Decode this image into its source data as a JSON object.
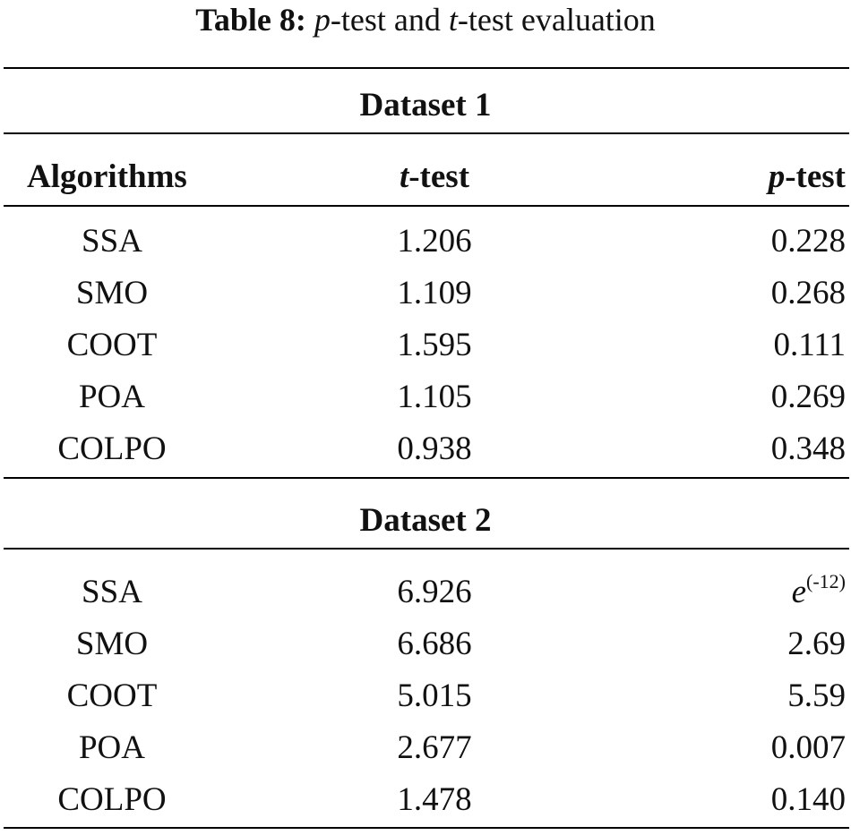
{
  "caption": {
    "label": "Table 8:",
    "p_letter": "p",
    "mid_text": "-test and ",
    "t_letter": "t",
    "end_text": "-test evaluation"
  },
  "header": {
    "algorithms": "Algorithms",
    "t_letter": "t",
    "t_suffix": "-test",
    "p_letter": "p",
    "p_suffix": "-test"
  },
  "dataset1": {
    "title": "Dataset 1",
    "rows": [
      {
        "algorithm": "SSA",
        "t": "1.206",
        "p": "0.228"
      },
      {
        "algorithm": "SMO",
        "t": "1.109",
        "p": "0.268"
      },
      {
        "algorithm": "COOT",
        "t": "1.595",
        "p": "0.111"
      },
      {
        "algorithm": "POA",
        "t": "1.105",
        "p": "0.269"
      },
      {
        "algorithm": "COLPO",
        "t": "0.938",
        "p": "0.348"
      }
    ]
  },
  "dataset2": {
    "title": "Dataset 2",
    "rows": [
      {
        "algorithm": "SSA",
        "t": "6.926",
        "p_base": "e",
        "p_exp": "(-12)"
      },
      {
        "algorithm": "SMO",
        "t": "6.686",
        "p": "2.69"
      },
      {
        "algorithm": "COOT",
        "t": "5.015",
        "p": "5.59"
      },
      {
        "algorithm": "POA",
        "t": "2.677",
        "p": "0.007"
      },
      {
        "algorithm": "COLPO",
        "t": "1.478",
        "p": "0.140"
      }
    ]
  }
}
